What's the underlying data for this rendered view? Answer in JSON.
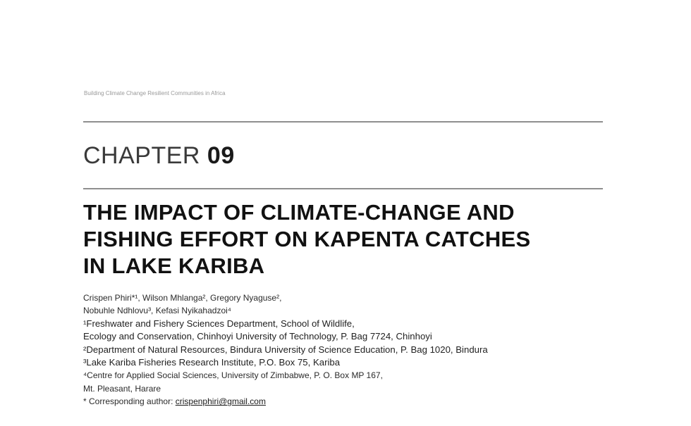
{
  "running_header": "Building Climate Change Resilient Communities in Africa",
  "chapter": {
    "word": "CHAPTER",
    "number": "09"
  },
  "title_lines": [
    "THE IMPACT OF CLIMATE-CHANGE AND",
    "FISHING EFFORT ON KAPENTA CATCHES",
    "IN LAKE KARIBA"
  ],
  "authors_lines": [
    "Crispen Phiri*¹, Wilson Mhlanga², Gregory Nyaguse²,",
    "Nobuhle Ndhlovu³, Kefasi Nyikahadzoi⁴"
  ],
  "affiliation_lines": [
    "¹Freshwater and Fishery Sciences Department, School of Wildlife,",
    "Ecology and Conservation, Chinhoyi University of Technology, P. Bag 7724, Chinhoyi",
    "²Department of Natural Resources, Bindura University of Science Education, P. Bag 1020, Bindura",
    "³Lake Kariba Fisheries Research Institute, P.O. Box 75, Kariba"
  ],
  "affiliation_4_lines": [
    "⁴Centre for Applied Social Sciences, University of Zimbabwe, P. O. Box MP 167,",
    "Mt. Pleasant, Harare"
  ],
  "corresponding": {
    "label": "* Corresponding author: ",
    "email": "crispenphiri@gmail.com"
  }
}
